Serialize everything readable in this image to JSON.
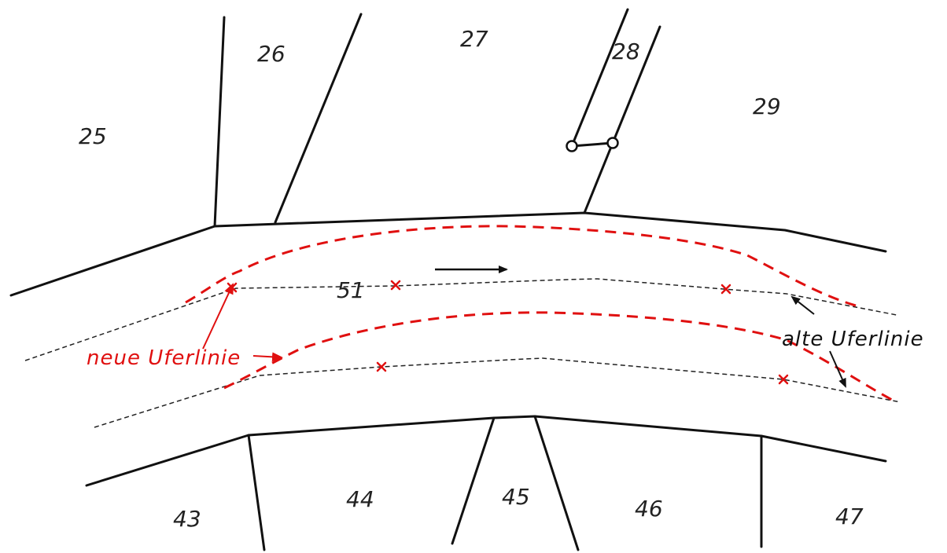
{
  "colors": {
    "boundary": "#111111",
    "old_bank": "#222222",
    "new_bank": "#e01010",
    "background": "#ffffff"
  },
  "parcels": {
    "p25": "25",
    "p26": "26",
    "p27": "27",
    "p28": "28",
    "p29": "29",
    "p51": "51",
    "p43": "43",
    "p44": "44",
    "p45": "45",
    "p46": "46",
    "p47": "47"
  },
  "annotations": {
    "new_bank_label": "neue Uferlinie",
    "old_bank_label": "alte Uferlinie"
  },
  "icons": {
    "flow": "flow-direction-arrow-icon",
    "marker": "cross-marker-icon",
    "monument": "boundary-point-circle-icon"
  }
}
